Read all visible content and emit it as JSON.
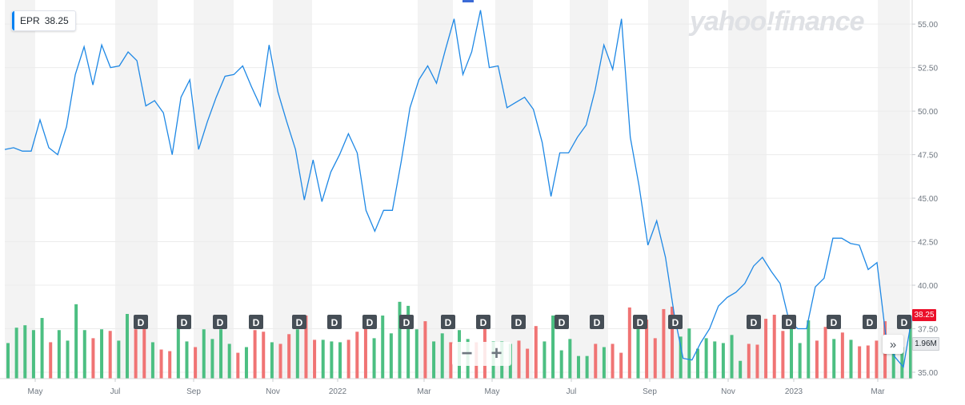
{
  "ticker": {
    "symbol": "EPR",
    "price": "38.25"
  },
  "brand": {
    "watermark": "yahoo!finance"
  },
  "controls": {
    "zoom_out": "−",
    "zoom_in": "+",
    "nav": "»"
  },
  "tags": {
    "price": "38.25",
    "volume": "1.96M"
  },
  "colors": {
    "line": "#1e88e5",
    "up": "#4cbf82",
    "down": "#f07474",
    "band": "#f3f3f3",
    "grid": "#ececec",
    "text": "#6f7780",
    "dividend": "#464e56",
    "price_tag": "#eb0f29"
  },
  "chart_data": {
    "type": "line",
    "title": "",
    "series": [
      {
        "name": "EPR",
        "values": [
          47.8,
          47.9,
          47.7,
          47.7,
          49.5,
          47.9,
          47.5,
          49.1,
          52.1,
          53.7,
          51.5,
          53.8,
          52.5,
          52.6,
          53.4,
          52.9,
          50.3,
          50.6,
          49.9,
          47.5,
          50.8,
          51.8,
          47.8,
          49.4,
          50.8,
          52.0,
          52.1,
          52.6,
          51.4,
          50.3,
          53.8,
          51.1,
          49.4,
          47.8,
          44.9,
          47.2,
          44.8,
          46.5,
          47.5,
          48.7,
          47.6,
          44.3,
          43.1,
          44.3,
          44.3,
          47.1,
          50.2,
          51.8,
          52.6,
          51.6,
          53.5,
          55.3,
          52.1,
          53.4,
          55.8,
          52.5,
          52.6,
          50.2,
          50.5,
          50.8,
          50.1,
          48.2,
          45.1,
          47.6,
          47.6,
          48.5,
          49.2,
          51.2,
          53.8,
          52.4,
          55.3,
          48.5,
          45.7,
          42.3,
          43.7,
          41.6,
          38.3,
          35.8,
          35.7,
          36.7,
          37.5,
          38.8,
          39.3,
          39.6,
          40.1,
          41.1,
          41.6,
          40.8,
          40.1,
          38.0,
          37.5,
          37.5,
          39.9,
          40.4,
          42.7,
          42.7,
          42.4,
          42.3,
          40.9,
          41.3,
          37.1,
          35.9,
          35.3,
          38.25
        ]
      }
    ],
    "x_ticks": [
      "May",
      "Jul",
      "Sep",
      "Nov",
      "2022",
      "Mar",
      "May",
      "Jul",
      "Sep",
      "Nov",
      "2023",
      "Mar"
    ],
    "y_ticks": [
      "35.00",
      "37.50",
      "40.00",
      "42.50",
      "45.00",
      "47.50",
      "50.00",
      "52.50",
      "55.00"
    ],
    "ylim": [
      35,
      56.2
    ],
    "volume": {
      "values": [
        4.4,
        6.3,
        6.6,
        6.0,
        7.5,
        4.5,
        6.0,
        4.7,
        9.2,
        6.0,
        5.0,
        6.1,
        5.9,
        4.7,
        8.0,
        6.1,
        6.8,
        4.5,
        3.6,
        3.4,
        6.2,
        4.6,
        3.9,
        6.1,
        4.9,
        6.1,
        4.3,
        3.2,
        3.9,
        6.0,
        5.8,
        4.5,
        4.3,
        5.5,
        6.1,
        7.8,
        4.8,
        4.8,
        4.6,
        4.5,
        4.8,
        5.8,
        6.9,
        5.0,
        7.8,
        5.6,
        9.5,
        9.0,
        6.1,
        7.1,
        4.6,
        5.6,
        4.5,
        6.0,
        4.9,
        4.5,
        7.9,
        4.6,
        4.6,
        4.3,
        4.7,
        3.7,
        6.5,
        4.6,
        7.8,
        3.5,
        4.9,
        2.8,
        2.8,
        4.3,
        3.9,
        4.3,
        3.2,
        8.8,
        7.9,
        7.3,
        5.0,
        8.6,
        8.9,
        5.2,
        6.2,
        3.7,
        5.0,
        4.6,
        4.4,
        5.4,
        2.2,
        4.3,
        4.2,
        7.4,
        7.9,
        5.9,
        6.2,
        4.4,
        7.2,
        4.7,
        6.4,
        4.9,
        5.7,
        4.8,
        4.0,
        4.1,
        4.7,
        7.1,
        4.4,
        3.9,
        7.4
      ],
      "up": [
        1,
        1,
        1,
        1,
        1,
        0,
        1,
        1,
        1,
        1,
        0,
        1,
        0,
        1,
        1,
        0,
        0,
        1,
        0,
        0,
        1,
        1,
        0,
        1,
        1,
        1,
        1,
        0,
        1,
        0,
        0,
        1,
        0,
        0,
        1,
        0,
        0,
        1,
        1,
        1,
        0,
        0,
        0,
        1,
        1,
        1,
        1,
        1,
        1,
        0,
        1,
        1,
        0,
        1,
        1,
        0,
        0,
        1,
        1,
        1,
        0,
        0,
        0,
        1,
        1,
        1,
        1,
        1,
        1,
        0,
        1,
        0,
        0,
        0,
        1,
        0,
        0,
        0,
        0,
        1,
        1,
        1,
        1,
        1,
        1,
        1,
        1,
        0,
        0,
        0,
        0,
        0,
        1,
        1,
        1,
        0,
        0,
        1,
        0,
        1,
        0,
        0,
        0,
        0,
        1,
        1,
        1
      ]
    },
    "dividends": [
      42,
      57,
      68,
      81,
      93,
      111,
      122,
      136,
      149,
      160,
      178,
      192,
      203,
      216,
      229,
      239,
      253,
      266,
      280,
      294
    ],
    "shaded_months": [
      "May",
      "Jul",
      "Sep",
      "Nov",
      "Jan",
      "Mar",
      "May",
      "Jul",
      "Sep",
      "Nov",
      "Jan",
      "Mar"
    ],
    "grid": true
  }
}
